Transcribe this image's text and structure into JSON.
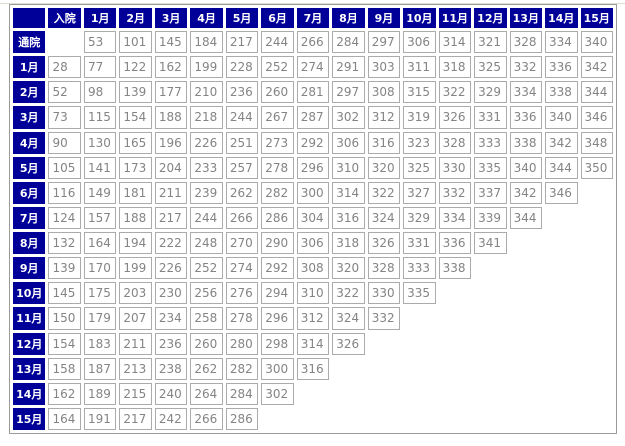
{
  "page": {
    "background": "#ffffff",
    "top_divider_color": "#ddddd5"
  },
  "table": {
    "header_bg_color": "#000099",
    "header_text_color": "#ffffff",
    "cell_border_color": "#ababab",
    "cell_text_color": "#848484",
    "outer_border_color": "#9b9b9b",
    "columns": [
      "",
      "入院",
      "1月",
      "2月",
      "3月",
      "4月",
      "5月",
      "6月",
      "7月",
      "8月",
      "9月",
      "10月",
      "11月",
      "12月",
      "13月",
      "14月",
      "15月"
    ],
    "rows": [
      {
        "label": "通院",
        "values": [
          "",
          "53",
          "101",
          "145",
          "184",
          "217",
          "244",
          "266",
          "284",
          "297",
          "306",
          "314",
          "321",
          "328",
          "334",
          "340"
        ]
      },
      {
        "label": "1月",
        "values": [
          "28",
          "77",
          "122",
          "162",
          "199",
          "228",
          "252",
          "274",
          "291",
          "303",
          "311",
          "318",
          "325",
          "332",
          "336",
          "342"
        ]
      },
      {
        "label": "2月",
        "values": [
          "52",
          "98",
          "139",
          "177",
          "210",
          "236",
          "260",
          "281",
          "297",
          "308",
          "315",
          "322",
          "329",
          "334",
          "338",
          "344"
        ]
      },
      {
        "label": "3月",
        "values": [
          "73",
          "115",
          "154",
          "188",
          "218",
          "244",
          "267",
          "287",
          "302",
          "312",
          "319",
          "326",
          "331",
          "336",
          "340",
          "346"
        ]
      },
      {
        "label": "4月",
        "values": [
          "90",
          "130",
          "165",
          "196",
          "226",
          "251",
          "273",
          "292",
          "306",
          "316",
          "323",
          "328",
          "333",
          "338",
          "342",
          "348"
        ]
      },
      {
        "label": "5月",
        "values": [
          "105",
          "141",
          "173",
          "204",
          "233",
          "257",
          "278",
          "296",
          "310",
          "320",
          "325",
          "330",
          "335",
          "340",
          "344",
          "350"
        ]
      },
      {
        "label": "6月",
        "values": [
          "116",
          "149",
          "181",
          "211",
          "239",
          "262",
          "282",
          "300",
          "314",
          "322",
          "327",
          "332",
          "337",
          "342",
          "346",
          ""
        ]
      },
      {
        "label": "7月",
        "values": [
          "124",
          "157",
          "188",
          "217",
          "244",
          "266",
          "286",
          "304",
          "316",
          "324",
          "329",
          "334",
          "339",
          "344",
          "",
          ""
        ]
      },
      {
        "label": "8月",
        "values": [
          "132",
          "164",
          "194",
          "222",
          "248",
          "270",
          "290",
          "306",
          "318",
          "326",
          "331",
          "336",
          "341",
          "",
          "",
          ""
        ]
      },
      {
        "label": "9月",
        "values": [
          "139",
          "170",
          "199",
          "226",
          "252",
          "274",
          "292",
          "308",
          "320",
          "328",
          "333",
          "338",
          "",
          "",
          "",
          ""
        ]
      },
      {
        "label": "10月",
        "values": [
          "145",
          "175",
          "203",
          "230",
          "256",
          "276",
          "294",
          "310",
          "322",
          "330",
          "335",
          "",
          "",
          "",
          "",
          ""
        ]
      },
      {
        "label": "11月",
        "values": [
          "150",
          "179",
          "207",
          "234",
          "258",
          "278",
          "296",
          "312",
          "324",
          "332",
          "",
          "",
          "",
          "",
          "",
          ""
        ]
      },
      {
        "label": "12月",
        "values": [
          "154",
          "183",
          "211",
          "236",
          "260",
          "280",
          "298",
          "314",
          "326",
          "",
          "",
          "",
          "",
          "",
          "",
          ""
        ]
      },
      {
        "label": "13月",
        "values": [
          "158",
          "187",
          "213",
          "238",
          "262",
          "282",
          "300",
          "316",
          "",
          "",
          "",
          "",
          "",
          "",
          "",
          ""
        ]
      },
      {
        "label": "14月",
        "values": [
          "162",
          "189",
          "215",
          "240",
          "264",
          "284",
          "302",
          "",
          "",
          "",
          "",
          "",
          "",
          "",
          "",
          ""
        ]
      },
      {
        "label": "15月",
        "values": [
          "164",
          "191",
          "217",
          "242",
          "266",
          "286",
          "",
          "",
          "",
          "",
          "",
          "",
          "",
          "",
          "",
          ""
        ]
      }
    ]
  }
}
